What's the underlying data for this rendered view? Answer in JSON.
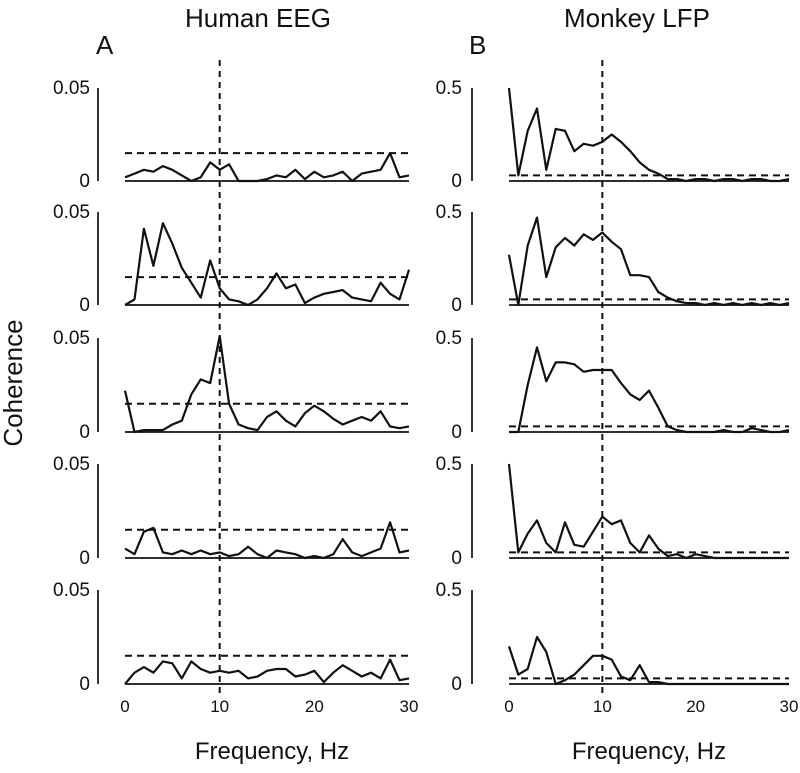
{
  "chart_data": {
    "type": "line",
    "ylabel": "Coherence",
    "xlim": [
      0,
      30
    ],
    "x_ticks": [
      0,
      10,
      20,
      30
    ],
    "marker_frequency": 10,
    "x": [
      0,
      1,
      2,
      3,
      4,
      5,
      6,
      7,
      8,
      9,
      10,
      11,
      12,
      13,
      14,
      15,
      16,
      17,
      18,
      19,
      20,
      21,
      22,
      23,
      24,
      25,
      26,
      27,
      28,
      29,
      30
    ],
    "columns": [
      {
        "letter": "A",
        "title": "Human EEG",
        "xlabel": "Frequency, Hz",
        "ylim": [
          0,
          0.05
        ],
        "y_tick_labels": [
          "0.05",
          "0"
        ],
        "x_tick_labels": [
          "0",
          "10",
          "20",
          "30"
        ],
        "panels": [
          {
            "threshold": 0.015,
            "values": [
              0.002,
              0.004,
              0.006,
              0.005,
              0.008,
              0.006,
              0.003,
              0.0,
              0.002,
              0.01,
              0.006,
              0.009,
              0.0,
              0.0,
              0.0,
              0.001,
              0.003,
              0.002,
              0.006,
              0.001,
              0.005,
              0.002,
              0.003,
              0.005,
              0.0,
              0.004,
              0.005,
              0.006,
              0.015,
              0.002,
              0.003
            ]
          },
          {
            "threshold": 0.015,
            "values": [
              0.0,
              0.003,
              0.041,
              0.021,
              0.044,
              0.033,
              0.02,
              0.012,
              0.004,
              0.024,
              0.009,
              0.003,
              0.002,
              0.0,
              0.003,
              0.009,
              0.017,
              0.009,
              0.011,
              0.001,
              0.004,
              0.006,
              0.007,
              0.008,
              0.004,
              0.003,
              0.002,
              0.012,
              0.006,
              0.003,
              0.019
            ]
          },
          {
            "threshold": 0.015,
            "values": [
              0.022,
              0.0,
              0.001,
              0.001,
              0.001,
              0.004,
              0.006,
              0.02,
              0.028,
              0.026,
              0.051,
              0.015,
              0.004,
              0.002,
              0.001,
              0.008,
              0.011,
              0.006,
              0.003,
              0.01,
              0.014,
              0.011,
              0.007,
              0.004,
              0.006,
              0.008,
              0.006,
              0.011,
              0.003,
              0.002,
              0.003
            ]
          },
          {
            "threshold": 0.015,
            "values": [
              0.005,
              0.002,
              0.014,
              0.016,
              0.003,
              0.002,
              0.004,
              0.002,
              0.004,
              0.002,
              0.003,
              0.001,
              0.002,
              0.006,
              0.002,
              0.0,
              0.004,
              0.003,
              0.002,
              0.0,
              0.001,
              0.0,
              0.002,
              0.01,
              0.003,
              0.001,
              0.003,
              0.005,
              0.019,
              0.003,
              0.004
            ]
          },
          {
            "threshold": 0.015,
            "values": [
              0.0,
              0.006,
              0.009,
              0.006,
              0.012,
              0.011,
              0.003,
              0.012,
              0.008,
              0.006,
              0.007,
              0.006,
              0.007,
              0.003,
              0.004,
              0.007,
              0.008,
              0.008,
              0.004,
              0.005,
              0.007,
              0.001,
              0.006,
              0.01,
              0.007,
              0.004,
              0.006,
              0.003,
              0.013,
              0.002,
              0.003
            ]
          }
        ]
      },
      {
        "letter": "B",
        "title": "Monkey LFP",
        "xlabel": "Frequency, Hz",
        "ylim": [
          0,
          0.5
        ],
        "y_tick_labels": [
          "0.5",
          "0"
        ],
        "x_tick_labels": [
          "0",
          "10",
          "20",
          "30"
        ],
        "panels": [
          {
            "threshold": 0.03,
            "values": [
              0.5,
              0.03,
              0.27,
              0.39,
              0.06,
              0.28,
              0.27,
              0.16,
              0.2,
              0.19,
              0.21,
              0.25,
              0.21,
              0.16,
              0.1,
              0.06,
              0.04,
              0.01,
              0.01,
              0.0,
              0.01,
              0.01,
              0.0,
              0.01,
              0.01,
              0.0,
              0.01,
              0.01,
              0.0,
              0.0,
              0.01
            ]
          },
          {
            "threshold": 0.03,
            "values": [
              0.27,
              0.0,
              0.32,
              0.47,
              0.15,
              0.31,
              0.36,
              0.32,
              0.38,
              0.35,
              0.39,
              0.34,
              0.3,
              0.16,
              0.16,
              0.15,
              0.07,
              0.04,
              0.02,
              0.01,
              0.01,
              0.0,
              0.01,
              0.0,
              0.01,
              0.0,
              0.01,
              0.0,
              0.01,
              0.0,
              0.01
            ]
          },
          {
            "threshold": 0.03,
            "values": [
              0.0,
              0.0,
              0.25,
              0.45,
              0.27,
              0.37,
              0.37,
              0.36,
              0.32,
              0.33,
              0.33,
              0.33,
              0.26,
              0.2,
              0.17,
              0.22,
              0.13,
              0.03,
              0.01,
              0.0,
              0.0,
              0.0,
              0.0,
              0.01,
              0.0,
              0.0,
              0.02,
              0.01,
              0.0,
              0.0,
              0.01
            ]
          },
          {
            "threshold": 0.03,
            "values": [
              0.5,
              0.03,
              0.13,
              0.2,
              0.08,
              0.03,
              0.19,
              0.07,
              0.06,
              0.14,
              0.22,
              0.18,
              0.2,
              0.08,
              0.03,
              0.12,
              0.05,
              0.01,
              0.02,
              0.0,
              0.02,
              0.01,
              0.0,
              0.0,
              0.0,
              0.0,
              0.0,
              0.0,
              0.0,
              0.0,
              0.0
            ]
          },
          {
            "threshold": 0.03,
            "values": [
              0.2,
              0.05,
              0.08,
              0.25,
              0.17,
              0.0,
              0.02,
              0.05,
              0.1,
              0.15,
              0.15,
              0.13,
              0.04,
              0.02,
              0.1,
              0.01,
              0.01,
              0.0,
              0.0,
              0.0,
              0.0,
              0.0,
              0.0,
              0.0,
              0.0,
              0.0,
              0.0,
              0.0,
              0.0,
              0.0,
              0.0
            ]
          }
        ]
      }
    ]
  }
}
